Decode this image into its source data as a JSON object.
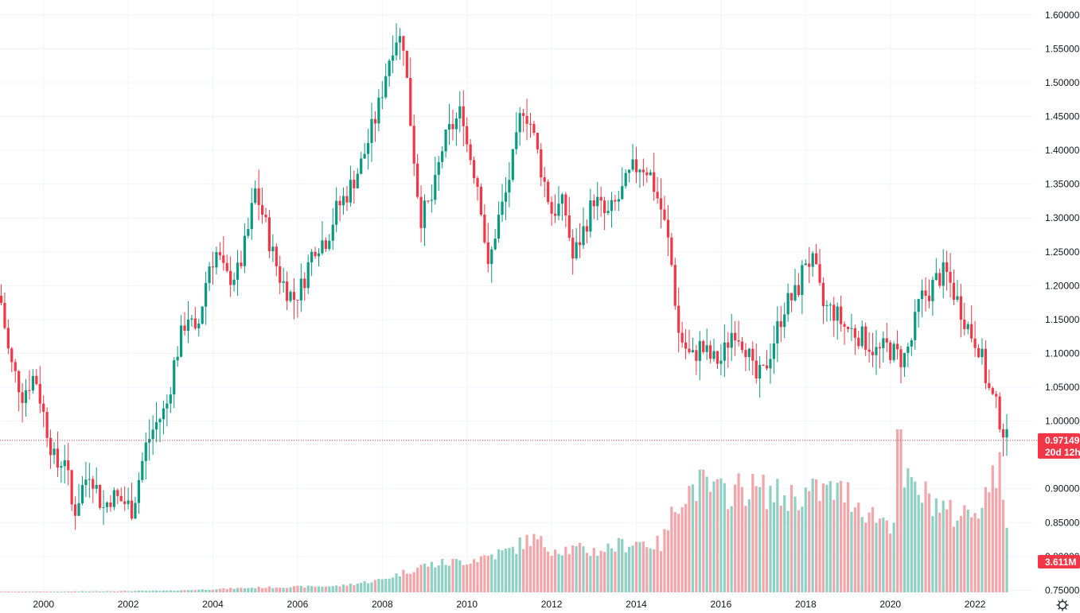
{
  "chart_data": {
    "type": "candlestick",
    "interval": "monthly",
    "price_axis": {
      "ticks": [
        "1.60000",
        "1.55000",
        "1.50000",
        "1.45000",
        "1.40000",
        "1.35000",
        "1.30000",
        "1.25000",
        "1.20000",
        "1.15000",
        "1.10000",
        "1.05000",
        "1.00000",
        "0.90000",
        "0.85000",
        "0.80000",
        "0.75000"
      ],
      "range": [
        0.747,
        1.608
      ]
    },
    "time_axis": {
      "ticks": [
        "2000",
        "2002",
        "2004",
        "2006",
        "2008",
        "2010",
        "2012",
        "2014",
        "2016",
        "2018",
        "2020",
        "2022"
      ],
      "start_year": 1999.0,
      "end_year": 2022.75
    },
    "last_price": {
      "value": 0.97149,
      "label": "0.97149",
      "countdown": "20d 12h",
      "color": "#f23645"
    },
    "last_volume": {
      "label": "3.611M",
      "color": "#f23645"
    },
    "colors": {
      "up": "#089981",
      "down": "#f23645",
      "vol_up": "#8fd0c4",
      "vol_down": "#f4a5a9",
      "grid": "#f0f3fa"
    },
    "close_path": [
      [
        1999.0,
        1.175
      ],
      [
        1999.2,
        1.09
      ],
      [
        1999.5,
        1.04
      ],
      [
        1999.8,
        1.07
      ],
      [
        2000.0,
        1.01
      ],
      [
        2000.3,
        0.93
      ],
      [
        2000.5,
        0.95
      ],
      [
        2000.7,
        0.86
      ],
      [
        2000.9,
        0.9
      ],
      [
        2001.1,
        0.93
      ],
      [
        2001.4,
        0.87
      ],
      [
        2001.6,
        0.89
      ],
      [
        2001.9,
        0.88
      ],
      [
        2002.1,
        0.87
      ],
      [
        2002.4,
        0.96
      ],
      [
        2002.6,
        0.99
      ],
      [
        2002.9,
        1.02
      ],
      [
        2003.1,
        1.09
      ],
      [
        2003.4,
        1.16
      ],
      [
        2003.6,
        1.12
      ],
      [
        2003.9,
        1.23
      ],
      [
        2004.1,
        1.25
      ],
      [
        2004.3,
        1.21
      ],
      [
        2004.6,
        1.22
      ],
      [
        2004.8,
        1.27
      ],
      [
        2005.0,
        1.34
      ],
      [
        2005.2,
        1.3
      ],
      [
        2005.4,
        1.25
      ],
      [
        2005.6,
        1.21
      ],
      [
        2005.9,
        1.18
      ],
      [
        2006.1,
        1.2
      ],
      [
        2006.4,
        1.26
      ],
      [
        2006.7,
        1.27
      ],
      [
        2006.9,
        1.31
      ],
      [
        2007.2,
        1.34
      ],
      [
        2007.5,
        1.38
      ],
      [
        2007.7,
        1.42
      ],
      [
        2007.9,
        1.46
      ],
      [
        2008.1,
        1.52
      ],
      [
        2008.3,
        1.57
      ],
      [
        2008.5,
        1.56
      ],
      [
        2008.7,
        1.42
      ],
      [
        2008.9,
        1.3
      ],
      [
        2009.2,
        1.33
      ],
      [
        2009.4,
        1.4
      ],
      [
        2009.6,
        1.43
      ],
      [
        2009.9,
        1.46
      ],
      [
        2010.0,
        1.41
      ],
      [
        2010.3,
        1.34
      ],
      [
        2010.5,
        1.22
      ],
      [
        2010.7,
        1.29
      ],
      [
        2010.9,
        1.33
      ],
      [
        2011.2,
        1.42
      ],
      [
        2011.3,
        1.47
      ],
      [
        2011.5,
        1.44
      ],
      [
        2011.8,
        1.36
      ],
      [
        2012.0,
        1.31
      ],
      [
        2012.3,
        1.32
      ],
      [
        2012.5,
        1.24
      ],
      [
        2012.8,
        1.29
      ],
      [
        2013.0,
        1.33
      ],
      [
        2013.3,
        1.3
      ],
      [
        2013.6,
        1.33
      ],
      [
        2013.9,
        1.37
      ],
      [
        2014.1,
        1.38
      ],
      [
        2014.3,
        1.37
      ],
      [
        2014.6,
        1.31
      ],
      [
        2014.8,
        1.25
      ],
      [
        2015.0,
        1.13
      ],
      [
        2015.3,
        1.09
      ],
      [
        2015.5,
        1.11
      ],
      [
        2015.8,
        1.09
      ],
      [
        2016.0,
        1.09
      ],
      [
        2016.3,
        1.14
      ],
      [
        2016.6,
        1.11
      ],
      [
        2016.8,
        1.06
      ],
      [
        2017.0,
        1.07
      ],
      [
        2017.3,
        1.13
      ],
      [
        2017.5,
        1.17
      ],
      [
        2017.8,
        1.19
      ],
      [
        2018.0,
        1.24
      ],
      [
        2018.2,
        1.23
      ],
      [
        2018.4,
        1.17
      ],
      [
        2018.7,
        1.16
      ],
      [
        2018.9,
        1.14
      ],
      [
        2019.2,
        1.13
      ],
      [
        2019.4,
        1.12
      ],
      [
        2019.7,
        1.1
      ],
      [
        2019.9,
        1.11
      ],
      [
        2020.1,
        1.1
      ],
      [
        2020.3,
        1.09
      ],
      [
        2020.5,
        1.12
      ],
      [
        2020.7,
        1.18
      ],
      [
        2020.9,
        1.19
      ],
      [
        2021.1,
        1.21
      ],
      [
        2021.3,
        1.22
      ],
      [
        2021.5,
        1.19
      ],
      [
        2021.7,
        1.16
      ],
      [
        2021.9,
        1.13
      ],
      [
        2022.1,
        1.11
      ],
      [
        2022.3,
        1.05
      ],
      [
        2022.5,
        1.02
      ],
      [
        2022.7,
        0.98
      ],
      [
        2022.75,
        0.971
      ]
    ],
    "volume_path": [
      [
        1999.0,
        0.002
      ],
      [
        2003.0,
        0.01
      ],
      [
        2005.0,
        0.03
      ],
      [
        2007.0,
        0.04
      ],
      [
        2008.0,
        0.08
      ],
      [
        2009.0,
        0.17
      ],
      [
        2010.0,
        0.2
      ],
      [
        2011.0,
        0.26
      ],
      [
        2011.5,
        0.34
      ],
      [
        2012.0,
        0.28
      ],
      [
        2013.0,
        0.26
      ],
      [
        2014.0,
        0.32
      ],
      [
        2014.6,
        0.3
      ],
      [
        2015.0,
        0.6
      ],
      [
        2015.5,
        0.68
      ],
      [
        2016.0,
        0.62
      ],
      [
        2016.5,
        0.66
      ],
      [
        2017.0,
        0.64
      ],
      [
        2017.5,
        0.6
      ],
      [
        2018.0,
        0.62
      ],
      [
        2018.5,
        0.64
      ],
      [
        2019.0,
        0.62
      ],
      [
        2019.5,
        0.5
      ],
      [
        2020.0,
        0.44
      ],
      [
        2020.2,
        0.56
      ],
      [
        2020.3,
        0.7
      ],
      [
        2020.5,
        0.66
      ],
      [
        2021.0,
        0.58
      ],
      [
        2021.5,
        0.48
      ],
      [
        2022.0,
        0.52
      ],
      [
        2022.5,
        0.74
      ],
      [
        2022.75,
        0.38
      ]
    ],
    "volume_spikes": [
      [
        2020.2,
        1.0
      ],
      [
        2022.6,
        0.86
      ]
    ]
  }
}
